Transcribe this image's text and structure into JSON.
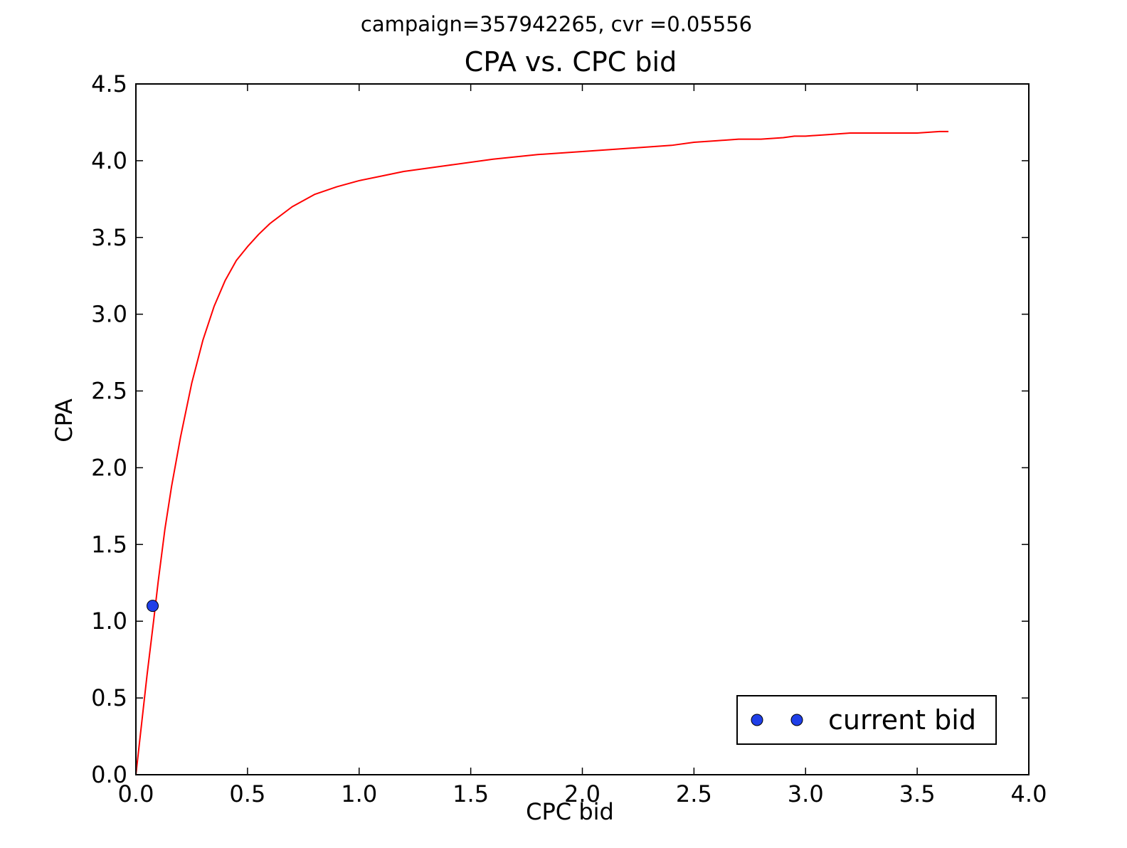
{
  "chart_data": {
    "type": "line",
    "suptitle": "campaign=357942265, cvr =0.05556",
    "title": "CPA vs. CPC bid",
    "xlabel": "CPC bid",
    "ylabel": "CPA",
    "xlim": [
      0.0,
      4.0
    ],
    "ylim": [
      0.0,
      4.5
    ],
    "xticks": [
      "0.0",
      "0.5",
      "1.0",
      "1.5",
      "2.0",
      "2.5",
      "3.0",
      "3.5",
      "4.0"
    ],
    "yticks": [
      "0.0",
      "0.5",
      "1.0",
      "1.5",
      "2.0",
      "2.5",
      "3.0",
      "3.5",
      "4.0",
      "4.5"
    ],
    "grid": false,
    "legend_position": "lower right",
    "series": [
      {
        "type": "line",
        "color": "#ff0000",
        "x": [
          0.0,
          0.02,
          0.05,
          0.08,
          0.1,
          0.13,
          0.16,
          0.2,
          0.25,
          0.3,
          0.35,
          0.4,
          0.45,
          0.5,
          0.55,
          0.6,
          0.7,
          0.8,
          0.9,
          1.0,
          1.1,
          1.2,
          1.4,
          1.6,
          1.8,
          2.0,
          2.2,
          2.4,
          2.5,
          2.6,
          2.7,
          2.8,
          2.9,
          2.95,
          3.0,
          3.1,
          3.2,
          3.3,
          3.4,
          3.5,
          3.6,
          3.64
        ],
        "y": [
          0.0,
          0.26,
          0.65,
          1.01,
          1.26,
          1.6,
          1.88,
          2.2,
          2.55,
          2.83,
          3.05,
          3.22,
          3.35,
          3.44,
          3.52,
          3.59,
          3.7,
          3.78,
          3.83,
          3.87,
          3.9,
          3.93,
          3.97,
          4.01,
          4.04,
          4.06,
          4.08,
          4.1,
          4.12,
          4.13,
          4.14,
          4.14,
          4.15,
          4.16,
          4.16,
          4.17,
          4.18,
          4.18,
          4.18,
          4.18,
          4.19,
          4.19
        ]
      },
      {
        "type": "scatter",
        "name": "current bid",
        "color": "#1f3fe8",
        "x": [
          0.075
        ],
        "y": [
          1.1
        ]
      }
    ]
  }
}
